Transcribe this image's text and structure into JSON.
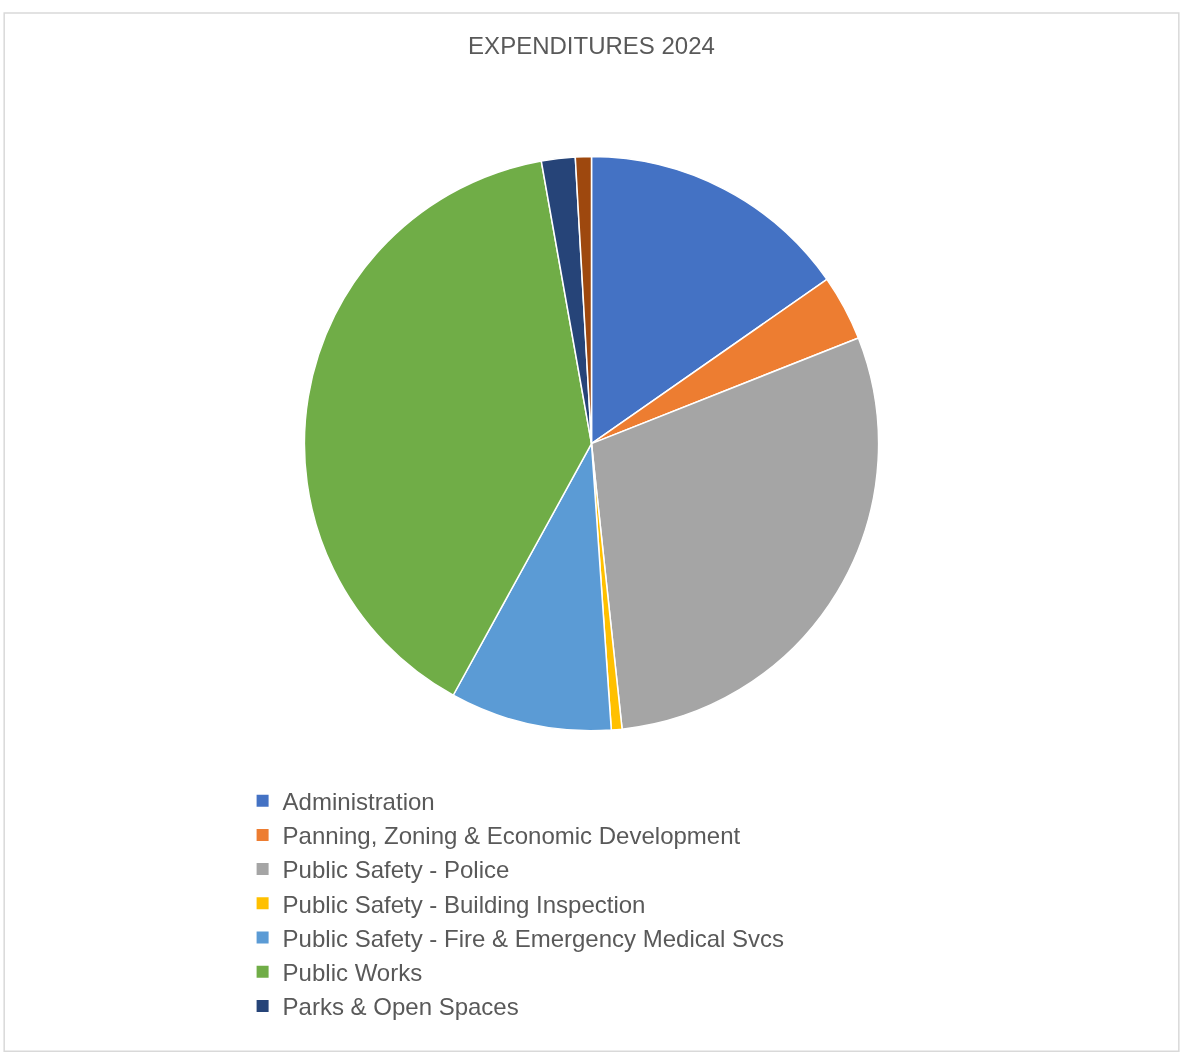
{
  "chart_data": {
    "type": "pie",
    "title": "EXPENDITURES 2024",
    "categories": [
      "Administration",
      "Panning, Zoning & Economic Development",
      "Public Safety - Police",
      "Public Safety - Building Inspection",
      "Public Safety - Fire & Emergency Medical Svcs",
      "Public Works",
      "Parks & Open Spaces",
      null
    ],
    "values": [
      15.3,
      3.7,
      29.3,
      0.6,
      9.1,
      39.2,
      1.9,
      0.9
    ],
    "colors": [
      "#4472c4",
      "#ed7d31",
      "#a5a5a5",
      "#ffc000",
      "#5b9bd5",
      "#70ad47",
      "#264478",
      "#9e480e"
    ],
    "legend": "bottom"
  }
}
